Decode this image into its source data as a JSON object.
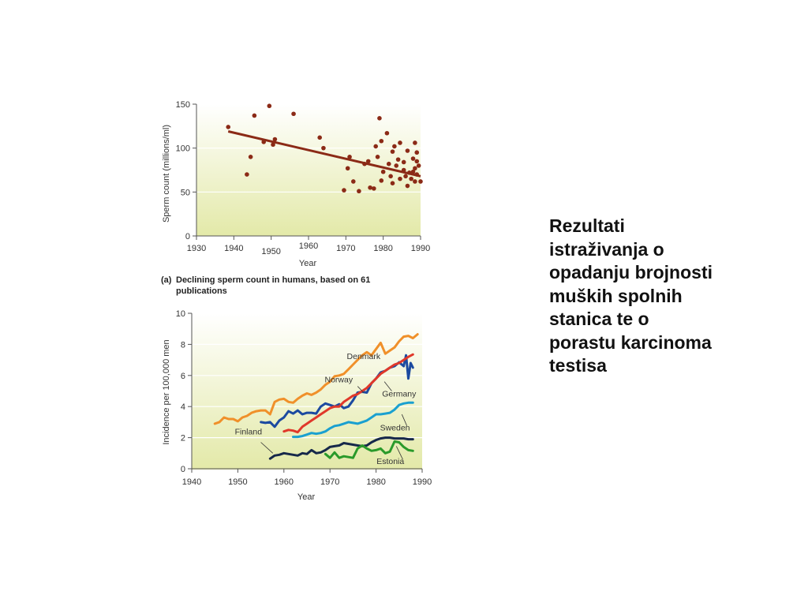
{
  "slide_text": "Rezultati\nistraživanja o\nopadanju brojnosti\nmuških spolnih\nstanica te o\nporastu karcinoma\ntestisa",
  "colors": {
    "panel_top": "#ffffff",
    "panel_bottom": "#e3e9a8",
    "scatter_point": "#8b2a16",
    "trend_line": "#8b2a16",
    "axis": "#555555"
  },
  "chart_data": [
    {
      "type": "scatter",
      "caption_label": "(a)",
      "caption": [
        "Declining sperm count in humans, based on 61",
        "publications"
      ],
      "xlabel": "Year",
      "ylabel": "Sperm count (millions/ml)",
      "xlim": [
        1930,
        1990
      ],
      "ylim": [
        0,
        150
      ],
      "xticks": [
        1930,
        1940,
        1950,
        1960,
        1970,
        1980,
        1990
      ],
      "yticks": [
        0,
        50,
        100,
        150
      ],
      "grid": "horizontal",
      "points": [
        [
          1938.5,
          124
        ],
        [
          1943.5,
          70
        ],
        [
          1944.5,
          90
        ],
        [
          1945.5,
          137
        ],
        [
          1948,
          107
        ],
        [
          1949.5,
          148
        ],
        [
          1950.5,
          104
        ],
        [
          1951,
          110
        ],
        [
          1956,
          139
        ],
        [
          1963,
          112
        ],
        [
          1964,
          100
        ],
        [
          1969.5,
          52
        ],
        [
          1970.5,
          77
        ],
        [
          1971,
          90
        ],
        [
          1972,
          62
        ],
        [
          1973.5,
          51
        ],
        [
          1975,
          82
        ],
        [
          1976,
          85
        ],
        [
          1976.5,
          55
        ],
        [
          1977.5,
          54
        ],
        [
          1978,
          102
        ],
        [
          1978.5,
          90
        ],
        [
          1979,
          134
        ],
        [
          1979.5,
          108
        ],
        [
          1979.5,
          63
        ],
        [
          1980,
          73
        ],
        [
          1981,
          117
        ],
        [
          1981.5,
          82
        ],
        [
          1982,
          68
        ],
        [
          1982.5,
          60
        ],
        [
          1982.5,
          96
        ],
        [
          1983,
          102
        ],
        [
          1983.5,
          80
        ],
        [
          1984,
          87
        ],
        [
          1984.5,
          106
        ],
        [
          1984.5,
          65
        ],
        [
          1985.5,
          84
        ],
        [
          1985.5,
          75
        ],
        [
          1986,
          68
        ],
        [
          1986.5,
          57
        ],
        [
          1986.5,
          97
        ],
        [
          1987,
          72
        ],
        [
          1987.5,
          65
        ],
        [
          1988,
          88
        ],
        [
          1988,
          73
        ],
        [
          1988.5,
          106
        ],
        [
          1988.5,
          77
        ],
        [
          1988.5,
          62
        ],
        [
          1989,
          95
        ],
        [
          1989,
          85
        ],
        [
          1989,
          70
        ],
        [
          1989.5,
          80
        ],
        [
          1990,
          62
        ]
      ],
      "trend": [
        [
          1938.5,
          119
        ],
        [
          1990,
          68
        ]
      ]
    },
    {
      "type": "line",
      "xlabel": "Year",
      "ylabel": "Incidence per 100,000 men",
      "xlim": [
        1940,
        1990
      ],
      "ylim": [
        0,
        10
      ],
      "xticks": [
        1940,
        1950,
        1960,
        1970,
        1980,
        1990
      ],
      "yticks": [
        0,
        2,
        4,
        6,
        8,
        10
      ],
      "series": [
        {
          "name": "Denmark",
          "color": "#f0902a",
          "points": [
            [
              1945,
              2.9
            ],
            [
              1946,
              3.0
            ],
            [
              1947,
              3.3
            ],
            [
              1948,
              3.2
            ],
            [
              1949,
              3.2
            ],
            [
              1950,
              3.05
            ],
            [
              1951,
              3.3
            ],
            [
              1952,
              3.4
            ],
            [
              1953,
              3.6
            ],
            [
              1954,
              3.7
            ],
            [
              1955,
              3.75
            ],
            [
              1956,
              3.75
            ],
            [
              1957,
              3.5
            ],
            [
              1958,
              4.3
            ],
            [
              1959,
              4.45
            ],
            [
              1960,
              4.5
            ],
            [
              1961,
              4.3
            ],
            [
              1962,
              4.25
            ],
            [
              1963,
              4.5
            ],
            [
              1964,
              4.7
            ],
            [
              1965,
              4.85
            ],
            [
              1966,
              4.75
            ],
            [
              1967,
              4.9
            ],
            [
              1968,
              5.1
            ],
            [
              1969,
              5.4
            ],
            [
              1970,
              5.6
            ],
            [
              1971,
              5.95
            ],
            [
              1972,
              6.0
            ],
            [
              1973,
              6.1
            ],
            [
              1974,
              6.4
            ],
            [
              1975,
              6.7
            ],
            [
              1976,
              7.0
            ],
            [
              1977,
              7.3
            ],
            [
              1978,
              7.5
            ],
            [
              1979,
              7.3
            ],
            [
              1980,
              7.7
            ],
            [
              1981,
              8.1
            ],
            [
              1982,
              7.4
            ],
            [
              1983,
              7.6
            ],
            [
              1984,
              7.8
            ],
            [
              1985,
              8.2
            ],
            [
              1986,
              8.5
            ],
            [
              1987,
              8.55
            ],
            [
              1988,
              8.4
            ],
            [
              1989,
              8.65
            ]
          ]
        },
        {
          "name": "Norway",
          "color": "#1c4aa0",
          "points": [
            [
              1955,
              3.0
            ],
            [
              1956,
              2.95
            ],
            [
              1957,
              3.0
            ],
            [
              1958,
              2.7
            ],
            [
              1959,
              3.1
            ],
            [
              1960,
              3.3
            ],
            [
              1961,
              3.7
            ],
            [
              1962,
              3.55
            ],
            [
              1963,
              3.75
            ],
            [
              1964,
              3.5
            ],
            [
              1965,
              3.6
            ],
            [
              1966,
              3.6
            ],
            [
              1967,
              3.55
            ],
            [
              1968,
              4.0
            ],
            [
              1969,
              4.2
            ],
            [
              1970,
              4.1
            ],
            [
              1971,
              4.0
            ],
            [
              1972,
              4.15
            ],
            [
              1973,
              3.9
            ],
            [
              1974,
              4.0
            ],
            [
              1975,
              4.4
            ],
            [
              1976,
              4.9
            ],
            [
              1977,
              4.95
            ],
            [
              1978,
              4.9
            ],
            [
              1979,
              5.5
            ],
            [
              1980,
              5.8
            ],
            [
              1981,
              6.2
            ],
            [
              1982,
              6.3
            ],
            [
              1983,
              6.5
            ],
            [
              1984,
              6.6
            ],
            [
              1985,
              6.85
            ],
            [
              1986,
              6.6
            ],
            [
              1986.5,
              7.3
            ],
            [
              1987,
              5.8
            ],
            [
              1987.5,
              6.8
            ],
            [
              1988,
              6.5
            ]
          ]
        },
        {
          "name": "Germany",
          "color": "#e0382a",
          "points": [
            [
              1960,
              2.4
            ],
            [
              1961,
              2.5
            ],
            [
              1962,
              2.45
            ],
            [
              1963,
              2.35
            ],
            [
              1964,
              2.7
            ],
            [
              1965,
              2.9
            ],
            [
              1966,
              3.1
            ],
            [
              1967,
              3.3
            ],
            [
              1968,
              3.5
            ],
            [
              1969,
              3.7
            ],
            [
              1970,
              3.9
            ],
            [
              1971,
              4.0
            ],
            [
              1972,
              4.0
            ],
            [
              1973,
              4.3
            ],
            [
              1974,
              4.5
            ],
            [
              1975,
              4.7
            ],
            [
              1976,
              4.8
            ],
            [
              1977,
              5.0
            ],
            [
              1978,
              5.2
            ],
            [
              1979,
              5.5
            ],
            [
              1980,
              5.8
            ],
            [
              1981,
              6.1
            ],
            [
              1982,
              6.3
            ],
            [
              1983,
              6.5
            ],
            [
              1984,
              6.7
            ],
            [
              1985,
              6.8
            ],
            [
              1986,
              7.0
            ],
            [
              1987,
              7.2
            ],
            [
              1988,
              7.35
            ]
          ]
        },
        {
          "name": "Sweden",
          "color": "#1aa0d0",
          "points": [
            [
              1962,
              2.05
            ],
            [
              1963,
              2.05
            ],
            [
              1964,
              2.1
            ],
            [
              1965,
              2.2
            ],
            [
              1966,
              2.3
            ],
            [
              1967,
              2.25
            ],
            [
              1968,
              2.3
            ],
            [
              1969,
              2.4
            ],
            [
              1970,
              2.6
            ],
            [
              1971,
              2.75
            ],
            [
              1972,
              2.8
            ],
            [
              1973,
              2.9
            ],
            [
              1974,
              3.0
            ],
            [
              1975,
              2.95
            ],
            [
              1976,
              2.9
            ],
            [
              1977,
              3.0
            ],
            [
              1978,
              3.1
            ],
            [
              1979,
              3.3
            ],
            [
              1980,
              3.5
            ],
            [
              1981,
              3.5
            ],
            [
              1982,
              3.55
            ],
            [
              1983,
              3.6
            ],
            [
              1984,
              3.8
            ],
            [
              1985,
              4.1
            ],
            [
              1986,
              4.2
            ],
            [
              1987,
              4.25
            ],
            [
              1988,
              4.25
            ]
          ]
        },
        {
          "name": "Finland",
          "color": "#16284a",
          "points": [
            [
              1957,
              0.65
            ],
            [
              1958,
              0.85
            ],
            [
              1959,
              0.9
            ],
            [
              1960,
              1.0
            ],
            [
              1961,
              0.95
            ],
            [
              1962,
              0.9
            ],
            [
              1963,
              0.85
            ],
            [
              1964,
              1.0
            ],
            [
              1965,
              0.95
            ],
            [
              1966,
              1.2
            ],
            [
              1967,
              1.0
            ],
            [
              1968,
              1.05
            ],
            [
              1969,
              1.2
            ],
            [
              1970,
              1.4
            ],
            [
              1971,
              1.45
            ],
            [
              1972,
              1.5
            ],
            [
              1973,
              1.65
            ],
            [
              1974,
              1.6
            ],
            [
              1975,
              1.55
            ],
            [
              1976,
              1.5
            ],
            [
              1977,
              1.45
            ],
            [
              1978,
              1.5
            ],
            [
              1979,
              1.7
            ],
            [
              1980,
              1.85
            ],
            [
              1981,
              1.95
            ],
            [
              1982,
              2.0
            ],
            [
              1983,
              2.0
            ],
            [
              1984,
              1.95
            ],
            [
              1985,
              1.95
            ],
            [
              1986,
              1.95
            ],
            [
              1987,
              1.9
            ],
            [
              1988,
              1.9
            ]
          ]
        },
        {
          "name": "Estonia",
          "color": "#2a9a2a",
          "points": [
            [
              1969,
              0.95
            ],
            [
              1970,
              0.7
            ],
            [
              1971,
              1.05
            ],
            [
              1972,
              0.7
            ],
            [
              1973,
              0.8
            ],
            [
              1974,
              0.75
            ],
            [
              1975,
              0.7
            ],
            [
              1976,
              1.3
            ],
            [
              1977,
              1.5
            ],
            [
              1978,
              1.3
            ],
            [
              1979,
              1.15
            ],
            [
              1980,
              1.2
            ],
            [
              1981,
              1.3
            ],
            [
              1982,
              1.0
            ],
            [
              1983,
              1.1
            ],
            [
              1984,
              1.75
            ],
            [
              1985,
              1.7
            ],
            [
              1986,
              1.4
            ],
            [
              1987,
              1.2
            ],
            [
              1988,
              1.15
            ]
          ]
        }
      ],
      "labels": [
        {
          "series": "Denmark",
          "text": "Denmark",
          "x": 1977.3,
          "y": 7.05
        },
        {
          "series": "Norway",
          "text": "Norway",
          "x": 1971.9,
          "y": 5.55
        },
        {
          "series": "Germany",
          "text": "Germany",
          "x": 1985.0,
          "y": 4.65
        },
        {
          "series": "Sweden",
          "text": "Sweden",
          "x": 1984.1,
          "y": 2.45
        },
        {
          "series": "Finland",
          "text": "Finland",
          "x": 1952.3,
          "y": 2.2
        },
        {
          "series": "Estonia",
          "text": "Estonia",
          "x": 1983.1,
          "y": 0.3
        }
      ]
    }
  ]
}
